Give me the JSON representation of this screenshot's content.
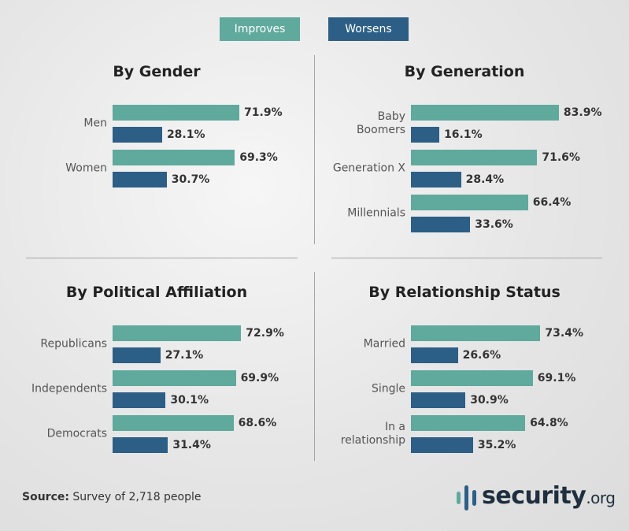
{
  "chart_data": {
    "type": "bar",
    "orientation": "horizontal",
    "legend": "top",
    "series": [
      {
        "name": "Improves",
        "color": "#5fa99d"
      },
      {
        "name": "Worsens",
        "color": "#2d5f86"
      }
    ],
    "panels": [
      {
        "title": "By Gender",
        "categories": [
          "Men",
          "Women"
        ],
        "series": [
          {
            "values": [
              71.9,
              69.3
            ],
            "value_labels": [
              "71.9%",
              "69.3%"
            ]
          },
          {
            "values": [
              28.1,
              30.7
            ],
            "value_labels": [
              "28.1%",
              "30.7%"
            ]
          }
        ]
      },
      {
        "title": "By Generation",
        "categories": [
          [
            "Baby",
            "Boomers"
          ],
          "Generation X",
          "Millennials"
        ],
        "series": [
          {
            "values": [
              83.9,
              71.6,
              66.4
            ],
            "value_labels": [
              "83.9%",
              "71.6%",
              "66.4%"
            ]
          },
          {
            "values": [
              16.1,
              28.4,
              33.6
            ],
            "value_labels": [
              "16.1%",
              "28.4%",
              "33.6%"
            ]
          }
        ]
      },
      {
        "title": "By Political Affiliation",
        "categories": [
          "Republicans",
          "Independents",
          "Democrats"
        ],
        "series": [
          {
            "values": [
              72.9,
              69.9,
              68.6
            ],
            "value_labels": [
              "72.9%",
              "69.9%",
              "68.6%"
            ]
          },
          {
            "values": [
              27.1,
              30.1,
              31.4
            ],
            "value_labels": [
              "27.1%",
              "30.1%",
              "31.4%"
            ]
          }
        ]
      },
      {
        "title": "By Relationship Status",
        "categories": [
          "Married",
          "Single",
          [
            "In a",
            "relationship"
          ]
        ],
        "series": [
          {
            "values": [
              73.4,
              69.1,
              64.8
            ],
            "value_labels": [
              "73.4%",
              "69.1%",
              "64.8%"
            ]
          },
          {
            "values": [
              26.6,
              30.9,
              35.2
            ],
            "value_labels": [
              "26.6%",
              "30.9%",
              "35.2%"
            ]
          }
        ]
      }
    ]
  },
  "source": {
    "label": "Source:",
    "text": "Survey of 2,718 people"
  },
  "logo": {
    "brand": "security",
    "suffix": ".org"
  }
}
